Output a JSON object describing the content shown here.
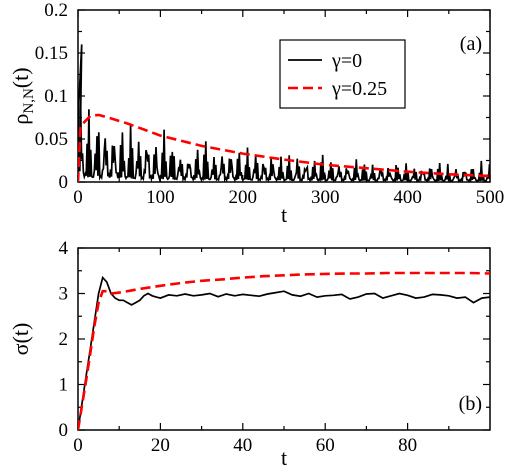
{
  "chart_data": [
    {
      "type": "line",
      "panel_label": "(a)",
      "xlabel": "t",
      "ylabel": "ρN,N(t)",
      "xlim": [
        0,
        500
      ],
      "ylim": [
        0,
        0.2
      ],
      "x_ticks": [
        0,
        100,
        200,
        300,
        400,
        500
      ],
      "y_ticks": [
        0,
        0.05,
        0.1,
        0.15,
        0.2
      ],
      "x_tick_labels": [
        "0",
        "100",
        "200",
        "300",
        "400",
        "500"
      ],
      "y_tick_labels": [
        "0",
        "0.05",
        "0.1",
        "0.15",
        "0.2"
      ],
      "legend": {
        "placement": "top-right",
        "entries": [
          "γ=0",
          "γ=0.25"
        ]
      },
      "series": [
        {
          "name": "γ=0",
          "color": "#000000",
          "style": "solid",
          "generator": "oscillating",
          "x_range": [
            0,
            500
          ],
          "envelope": {
            "t": [
              0,
              5,
              10,
              20,
              40,
              60,
              100,
              150,
              200,
              250,
              300,
              350,
              400,
              450,
              500
            ],
            "value": [
              0.16,
              0.15,
              0.1,
              0.1,
              0.1,
              0.08,
              0.065,
              0.055,
              0.045,
              0.04,
              0.035,
              0.03,
              0.028,
              0.025,
              0.025
            ]
          }
        },
        {
          "name": "γ=0.25",
          "color": "#ff0000",
          "style": "dashed",
          "x": [
            0,
            3,
            8,
            15,
            25,
            40,
            60,
            80,
            100,
            150,
            200,
            250,
            300,
            350,
            400,
            450,
            500
          ],
          "y": [
            0,
            0.065,
            0.07,
            0.077,
            0.078,
            0.074,
            0.068,
            0.061,
            0.054,
            0.042,
            0.033,
            0.026,
            0.02,
            0.016,
            0.012,
            0.009,
            0.007
          ]
        }
      ]
    },
    {
      "type": "line",
      "panel_label": "(b)",
      "xlabel": "t",
      "ylabel": "σ(t)",
      "xlim": [
        0,
        100
      ],
      "ylim": [
        0,
        4
      ],
      "x_ticks": [
        0,
        20,
        40,
        60,
        80
      ],
      "y_ticks": [
        0,
        1,
        2,
        3,
        4
      ],
      "x_tick_labels": [
        "0",
        "20",
        "40",
        "60",
        "80"
      ],
      "y_tick_labels": [
        "0",
        "1",
        "2",
        "3",
        "4"
      ],
      "series": [
        {
          "name": "γ=0",
          "color": "#000000",
          "style": "solid",
          "x": [
            0,
            1,
            2,
            3,
            4,
            5,
            6,
            7,
            8,
            9,
            10,
            11,
            12,
            13,
            14,
            15,
            16,
            17,
            18,
            19,
            20,
            22,
            24,
            26,
            28,
            30,
            32,
            34,
            36,
            38,
            40,
            42,
            44,
            46,
            48,
            50,
            52,
            54,
            56,
            58,
            60,
            62,
            64,
            66,
            68,
            70,
            72,
            74,
            76,
            78,
            80,
            82,
            84,
            86,
            88,
            90,
            92,
            94,
            96,
            98,
            100
          ],
          "y": [
            0,
            0.6,
            1.2,
            1.8,
            2.4,
            3.0,
            3.35,
            3.25,
            3.0,
            2.9,
            2.85,
            2.85,
            2.8,
            2.75,
            2.8,
            2.85,
            2.95,
            3.0,
            2.95,
            2.92,
            2.9,
            2.97,
            2.95,
            2.99,
            2.95,
            2.97,
            3.0,
            2.93,
            2.99,
            2.95,
            2.98,
            2.96,
            2.94,
            2.99,
            3.02,
            3.05,
            2.97,
            2.94,
            3.0,
            2.92,
            2.95,
            2.96,
            2.98,
            2.88,
            2.92,
            2.99,
            3.0,
            2.9,
            2.95,
            3.0,
            2.96,
            2.9,
            2.92,
            2.98,
            2.97,
            2.95,
            2.9,
            2.92,
            2.8,
            2.9,
            2.92
          ]
        },
        {
          "name": "γ=0.25",
          "color": "#ff0000",
          "style": "dashed",
          "x": [
            0,
            1,
            2,
            3,
            4,
            5,
            6,
            7,
            8,
            10,
            12,
            15,
            20,
            25,
            30,
            35,
            40,
            45,
            50,
            55,
            60,
            65,
            70,
            75,
            80,
            85,
            90,
            95,
            100
          ],
          "y": [
            0,
            0.55,
            1.1,
            1.7,
            2.3,
            2.8,
            3.05,
            3.05,
            3.0,
            3.02,
            3.05,
            3.1,
            3.17,
            3.23,
            3.28,
            3.31,
            3.35,
            3.38,
            3.4,
            3.42,
            3.43,
            3.44,
            3.44,
            3.45,
            3.45,
            3.45,
            3.45,
            3.45,
            3.44
          ]
        }
      ]
    }
  ]
}
